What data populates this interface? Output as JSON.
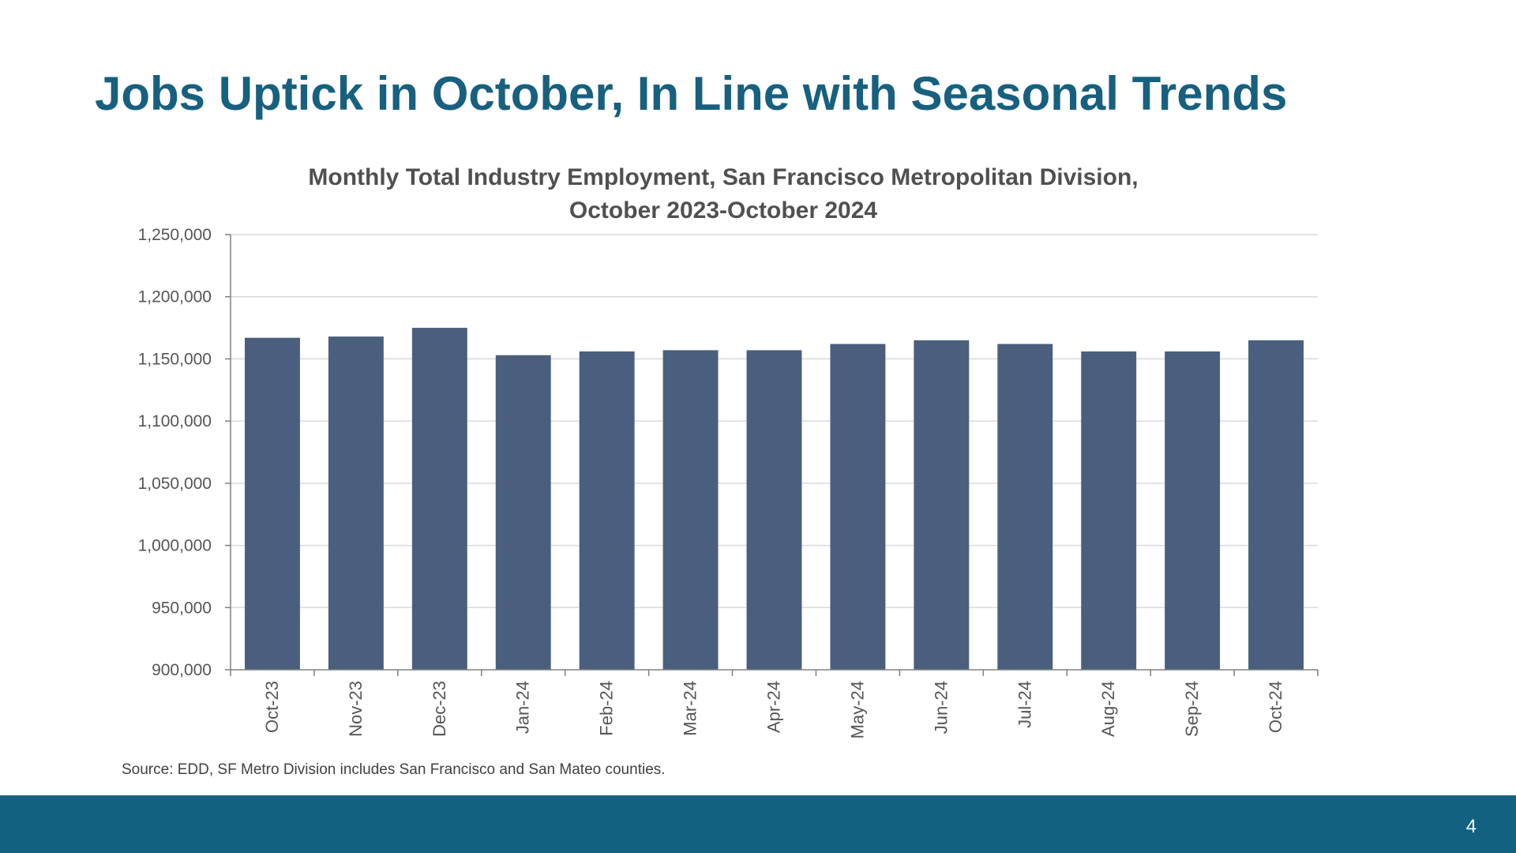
{
  "slide": {
    "title": "Jobs Uptick in October, In Line with Seasonal Trends",
    "source_note": "Source: EDD, SF Metro Division includes San Francisco and San Mateo counties.",
    "page_number": "4"
  },
  "colors": {
    "title": "#17607f",
    "bar": "#4a5f7e",
    "footer": "#136180"
  },
  "chart_data": {
    "type": "bar",
    "title_lines": [
      "Monthly Total Industry Employment, San Francisco Metropolitan Division,",
      "October 2023-October 2024"
    ],
    "categories": [
      "Oct-23",
      "Nov-23",
      "Dec-23",
      "Jan-24",
      "Feb-24",
      "Mar-24",
      "Apr-24",
      "May-24",
      "Jun-24",
      "Jul-24",
      "Aug-24",
      "Sep-24",
      "Oct-24"
    ],
    "values": [
      1167000,
      1168000,
      1175000,
      1153000,
      1156000,
      1157000,
      1157000,
      1162000,
      1165000,
      1162000,
      1156000,
      1156000,
      1165000
    ],
    "ylim": [
      900000,
      1250000
    ],
    "yticks": [
      900000,
      950000,
      1000000,
      1050000,
      1100000,
      1150000,
      1200000,
      1250000
    ],
    "ytick_labels": [
      "900,000",
      "950,000",
      "1,000,000",
      "1,050,000",
      "1,100,000",
      "1,150,000",
      "1,200,000",
      "1,250,000"
    ],
    "xlabel": "",
    "ylabel": "",
    "grid": true,
    "legend": "none"
  }
}
